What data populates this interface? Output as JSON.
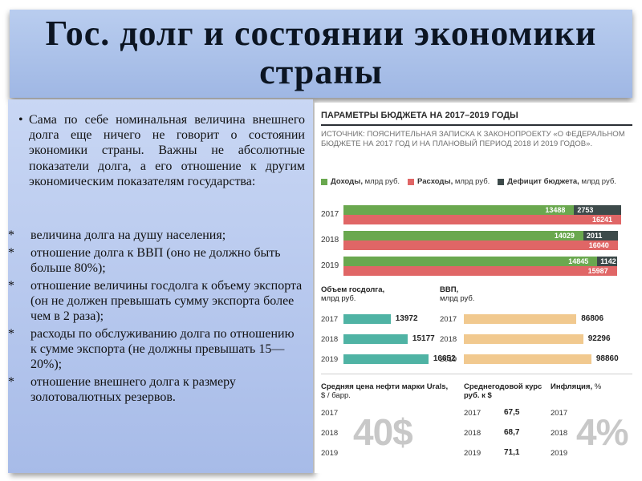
{
  "title": "Гос. долг и состоянии экономики страны",
  "intro": {
    "bullet": "•",
    "text": "Сама по себе номинальная величина внешнего долга еще ничего не говорит о состоянии экономики страны. Важны не абсолютные показатели долга, а его отношение к другим экономическим показателям государства:"
  },
  "sub_items": [
    {
      "star": "*",
      "text": "величина долга на душу населения;"
    },
    {
      "star": "*",
      "text": "отношение долга к ВВП (оно не должно быть больше 80%);"
    },
    {
      "star": "*",
      "text": "отношение величины госдолга к объему экспорта (он не должен превышать сумму экспорта более чем в 2 раза);"
    },
    {
      "star": "*",
      "text": "расходы по обслуживанию долга по отношению к сумме экспорта (не должны превышать 15—20%);"
    },
    {
      "star": "*",
      "text": "отношение внешнего долга к размеру золотовалютных резервов."
    }
  ],
  "infographic": {
    "title": "ПАРАМЕТРЫ БЮДЖЕТА НА 2017–2019 ГОДЫ",
    "source": "ИСТОЧНИК: ПОЯСНИТЕЛЬНАЯ ЗАПИСКА К ЗАКОНОПРОЕКТУ «О ФЕДЕРАЛЬНОМ БЮДЖЕТЕ НА 2017 ГОД И НА ПЛАНОВЫЙ ПЕРИОД 2018 И 2019 ГОДОВ».",
    "legend": [
      {
        "bold": "Доходы,",
        "rest": " млрд руб.",
        "color": "#6aa84f"
      },
      {
        "bold": "Расходы,",
        "rest": " млрд руб.",
        "color": "#e06666"
      },
      {
        "bold": "Дефицит бюджета,",
        "rest": " млрд руб.",
        "color": "#3d4a4a"
      }
    ],
    "gdp_title_bold": "ВВП,",
    "gdp_unit": "млрд руб.",
    "debt_title_bold": "Объем госдолга,",
    "debt_unit": "млрд руб.",
    "oil_title_bold": "Средняя цена нефти марки Urals,",
    "oil_unit": "$ / барр.",
    "oil_big": "40$",
    "rate_title_bold": "Среднегодовой курс руб. к $",
    "infl_title_bold": "Инфляция,",
    "infl_unit": "%",
    "infl_big": "4%",
    "years": [
      "2017",
      "2018",
      "2019"
    ],
    "rate_values": [
      "67,5",
      "68,7",
      "71,1"
    ]
  },
  "chart_data": [
    {
      "type": "bar",
      "title": "ПАРАМЕТРЫ БЮДЖЕТА НА 2017–2019 ГОДЫ",
      "categories": [
        "2017",
        "2018",
        "2019"
      ],
      "series": [
        {
          "name": "Доходы, млрд руб.",
          "values": [
            13488,
            14029,
            14845
          ],
          "color": "#6aa84f"
        },
        {
          "name": "Дефицит бюджета, млрд руб.",
          "values": [
            2753,
            2011,
            1142
          ],
          "color": "#3d4a4a"
        },
        {
          "name": "Расходы, млрд руб.",
          "values": [
            16241,
            16040,
            15987
          ],
          "color": "#e06666"
        }
      ]
    },
    {
      "type": "bar",
      "title": "Объем госдолга, млрд руб.",
      "categories": [
        "2017",
        "2018",
        "2019"
      ],
      "values": [
        13972,
        15177,
        16652
      ],
      "color": "#4fb3a4"
    },
    {
      "type": "bar",
      "title": "ВВП, млрд руб.",
      "categories": [
        "2017",
        "2018",
        "2019"
      ],
      "values": [
        86806,
        92296,
        98860
      ],
      "color": "#f1c98f"
    }
  ]
}
